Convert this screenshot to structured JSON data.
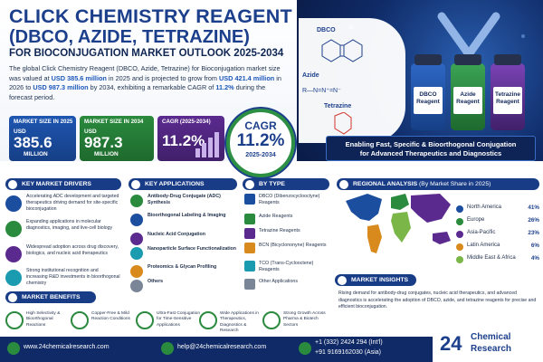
{
  "header": {
    "title_line1": "CLICK CHEMISTRY REAGENT",
    "title_line2": "(DBCO, AZIDE, TETRAZINE)",
    "title_line3": "FOR BIOCONJUGATION MARKET OUTLOOK 2025-2034",
    "intro_part1": "The global Click Chemistry Reagent (DBCO, Azide, Tetrazine) for Bioconjugation market size was valued at ",
    "intro_hl1": "USD 385.6 million",
    "intro_part2": " in 2025 and is projected to grow from ",
    "intro_hl2": "USD 421.4 million",
    "intro_part3": " in 2026 to ",
    "intro_hl3": "USD 987.3 million",
    "intro_part4": " by 2034, exhibiting a remarkable CAGR of ",
    "intro_hl4": "11.2%",
    "intro_part5": " during the forecast period."
  },
  "stats": [
    {
      "label": "MARKET SIZE IN 2025",
      "currency": "USD",
      "value": "385.6",
      "unit": "MILLION"
    },
    {
      "label": "MARKET SIZE IN 2034",
      "currency": "USD",
      "value": "987.3",
      "unit": "MILLION"
    },
    {
      "label": "CAGR (2025-2034)",
      "value": "11.2%"
    }
  ],
  "cagr": {
    "label": "CAGR",
    "value": "11.2%",
    "period": "2025-2034"
  },
  "hero": {
    "chem_labels": [
      "DBCO",
      "Azide",
      "Tetrazine"
    ],
    "vials": [
      "DBCO Reagent",
      "Azide Reagent",
      "Tetrazine Reagent"
    ],
    "banner_line1": "Enabling Fast, Specific & Bioorthogonal Conjugation",
    "banner_line2": "for Advanced Therapeutics and Diagnostics"
  },
  "drivers": {
    "heading": "KEY MARKET DRIVERS",
    "items": [
      "Accelerating ADC development and targeted therapeutics driving demand for site-specific bioconjugation",
      "Expanding applications in molecular diagnostics, imaging, and live-cell biology",
      "Widespread adoption across drug discovery, biologics, and nucleic acid therapeutics",
      "Strong institutional recognition and increasing R&D investments in bioorthogonal chemistry"
    ]
  },
  "applications": {
    "heading": "KEY APPLICATIONS",
    "items": [
      "Antibody-Drug Conjugate (ADC) Synthesis",
      "Bioorthogonal Labeling & Imaging",
      "Nucleic Acid Conjugation",
      "Nanoparticle Surface Functionalization",
      "Proteomics & Glycan Profiling",
      "Others"
    ]
  },
  "types": {
    "heading": "BY TYPE",
    "items": [
      {
        "label": "DBCO (Dibenzocyclooctyne) Reagents",
        "color": "#1c4e9f"
      },
      {
        "label": "Azide Reagents",
        "color": "#2a8a3d"
      },
      {
        "label": "Tetrazine Reagents",
        "color": "#5b2a8f"
      },
      {
        "label": "BCN (Bicyclononyne) Reagents",
        "color": "#d98a1c"
      },
      {
        "label": "TCO (Trans-Cyclooctene) Reagents",
        "color": "#1b9bb0"
      },
      {
        "label": "Other Applications",
        "color": "#7a8597"
      }
    ]
  },
  "regional": {
    "heading": "REGIONAL ANALYSIS",
    "subheading": "(By Market Share in 2025)",
    "items": [
      {
        "name": "North America",
        "share": "41%",
        "color": "#1c4e9f"
      },
      {
        "name": "Europe",
        "share": "26%",
        "color": "#2a8a3d"
      },
      {
        "name": "Asia-Pacific",
        "share": "23%",
        "color": "#5b2a8f"
      },
      {
        "name": "Latin America",
        "share": "6%",
        "color": "#d98a1c"
      },
      {
        "name": "Middle East & Africa",
        "share": "4%",
        "color": "#7ab648"
      }
    ]
  },
  "benefits": {
    "heading": "MARKET BENEFITS",
    "items": [
      "High Selectivity & Bioorthogonal Reactions",
      "Copper-Free & Mild Reaction Conditions",
      "Ultra-Fast Conjugation for Time-Sensitive Applications",
      "Wide Applications in Therapeutics, Diagnostics & Research",
      "Strong Growth Across Pharma & Biotech Sectors"
    ]
  },
  "insights": {
    "heading": "MARKET INSIGHTS",
    "text": "Rising demand for antibody-drug conjugates, nucleic acid therapeutics, and advanced diagnostics is accelerating the adoption of DBCO, azide, and tetrazine reagents for precise and efficient bioconjugation."
  },
  "footer": {
    "website": "www.24chemicalresearch.com",
    "email": "help@24chemicalresearch.com",
    "phone1": "+1 (332) 2424 294 (Int'l)",
    "phone2": "+91 9169162030 (Asia)"
  },
  "logo": {
    "number": "24",
    "line1": "Chemical",
    "line2": "Research"
  }
}
